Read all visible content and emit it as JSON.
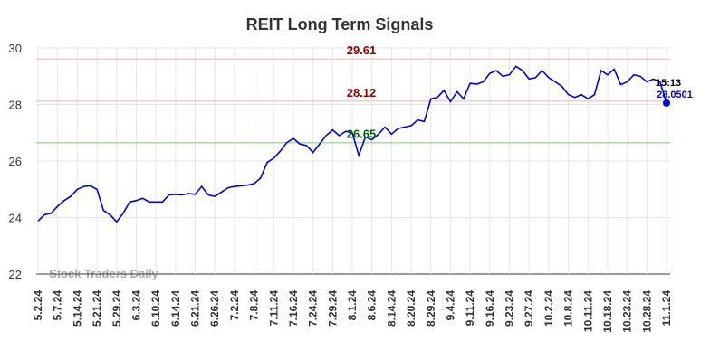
{
  "chart_data": {
    "type": "line",
    "title": "REIT Long Term Signals",
    "categories": [
      "5.2.24",
      null,
      null,
      "5.7.24",
      null,
      null,
      "5.14.24",
      null,
      null,
      "5.21.24",
      null,
      null,
      "5.29.24",
      null,
      null,
      "6.3.24",
      null,
      null,
      "6.10.24",
      null,
      null,
      "6.14.24",
      null,
      null,
      "6.21.24",
      null,
      null,
      "6.26.24",
      null,
      null,
      "7.2.24",
      null,
      null,
      "7.8.24",
      null,
      null,
      "7.11.24",
      null,
      null,
      "7.16.24",
      null,
      null,
      "7.24.24",
      null,
      null,
      "7.29.24",
      null,
      null,
      "8.1.24",
      null,
      null,
      "8.6.24",
      null,
      null,
      "8.14.24",
      null,
      null,
      "8.20.24",
      null,
      null,
      "8.29.24",
      null,
      null,
      "9.4.24",
      null,
      null,
      "9.11.24",
      null,
      null,
      "9.16.24",
      null,
      null,
      "9.23.24",
      null,
      null,
      "9.27.24",
      null,
      null,
      "10.2.24",
      null,
      null,
      "10.8.24",
      null,
      null,
      "10.11.24",
      null,
      null,
      "10.18.24",
      null,
      null,
      "10.23.24",
      null,
      null,
      "10.28.24",
      null,
      null,
      "11.1.24"
    ],
    "series": [
      {
        "color": "#0000e0",
        "values": [
          23.88,
          24.1,
          24.15,
          24.4,
          24.6,
          24.75,
          25.0,
          25.1,
          25.12,
          25.0,
          24.25,
          24.1,
          23.85,
          24.15,
          24.55,
          24.6,
          24.68,
          24.55,
          24.55,
          24.55,
          24.8,
          24.82,
          24.8,
          24.85,
          24.82,
          25.1,
          24.8,
          24.75,
          24.9,
          25.05,
          25.1,
          25.12,
          25.15,
          25.2,
          25.4,
          25.95,
          26.1,
          26.35,
          26.65,
          26.8,
          26.6,
          26.55,
          26.3,
          26.6,
          26.9,
          27.1,
          26.9,
          27.05,
          27.0,
          26.2,
          26.85,
          26.75,
          26.95,
          27.2,
          26.95,
          27.15,
          27.2,
          27.25,
          27.45,
          27.4,
          28.2,
          28.25,
          28.5,
          28.1,
          28.45,
          28.2,
          28.75,
          28.72,
          28.8,
          29.1,
          29.2,
          29.0,
          29.05,
          29.35,
          29.2,
          28.9,
          28.95,
          29.2,
          28.95,
          28.8,
          28.65,
          28.35,
          28.25,
          28.35,
          28.2,
          28.35,
          29.2,
          29.05,
          29.25,
          28.7,
          28.8,
          29.05,
          29.0,
          28.8,
          28.9,
          28.8,
          28.05
        ]
      }
    ],
    "ylim": [
      22,
      30
    ],
    "yticks": [
      22,
      24,
      26,
      28,
      30
    ],
    "grid": true,
    "reference_lines": [
      {
        "value": 29.61,
        "color": "#ffc8c8",
        "label_color": "#8b0000"
      },
      {
        "value": 28.12,
        "color": "#ffc8c8",
        "label_color": "#8b0000"
      },
      {
        "value": 26.65,
        "color": "#90e890",
        "label_color": "#006400"
      }
    ],
    "annotation": {
      "time": "15:13",
      "value": 28.0501
    },
    "watermark": "Stock Traders Daily"
  }
}
